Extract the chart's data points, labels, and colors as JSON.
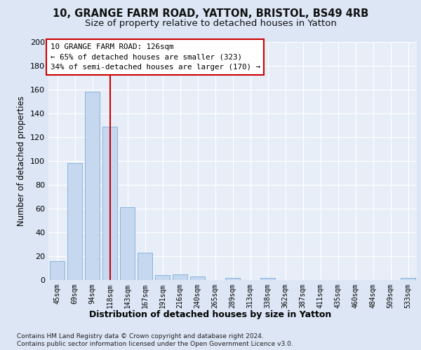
{
  "title1": "10, GRANGE FARM ROAD, YATTON, BRISTOL, BS49 4RB",
  "title2": "Size of property relative to detached houses in Yatton",
  "xlabel": "Distribution of detached houses by size in Yatton",
  "ylabel": "Number of detached properties",
  "footer1": "Contains HM Land Registry data © Crown copyright and database right 2024.",
  "footer2": "Contains public sector information licensed under the Open Government Licence v3.0.",
  "categories": [
    "45sqm",
    "69sqm",
    "94sqm",
    "118sqm",
    "143sqm",
    "167sqm",
    "191sqm",
    "216sqm",
    "240sqm",
    "265sqm",
    "289sqm",
    "313sqm",
    "338sqm",
    "362sqm",
    "387sqm",
    "411sqm",
    "435sqm",
    "460sqm",
    "484sqm",
    "509sqm",
    "533sqm"
  ],
  "values": [
    16,
    98,
    158,
    129,
    61,
    23,
    4,
    5,
    3,
    0,
    2,
    0,
    2,
    0,
    0,
    0,
    0,
    0,
    0,
    0,
    2
  ],
  "bar_color": "#c5d8f0",
  "bar_edge_color": "#7aadd4",
  "highlight_bar_index": 3,
  "highlight_color": "#cc0000",
  "annotation_text": "10 GRANGE FARM ROAD: 126sqm\n← 65% of detached houses are smaller (323)\n34% of semi-detached houses are larger (170) →",
  "annotation_box_color": "#cc0000",
  "ylim": [
    0,
    200
  ],
  "yticks": [
    0,
    20,
    40,
    60,
    80,
    100,
    120,
    140,
    160,
    180,
    200
  ],
  "bg_color": "#dce6f5",
  "plot_bg_color": "#e8eef8",
  "grid_color": "#ffffff",
  "title1_fontsize": 10.5,
  "title2_fontsize": 9.5,
  "xlabel_fontsize": 9,
  "ylabel_fontsize": 8.5
}
